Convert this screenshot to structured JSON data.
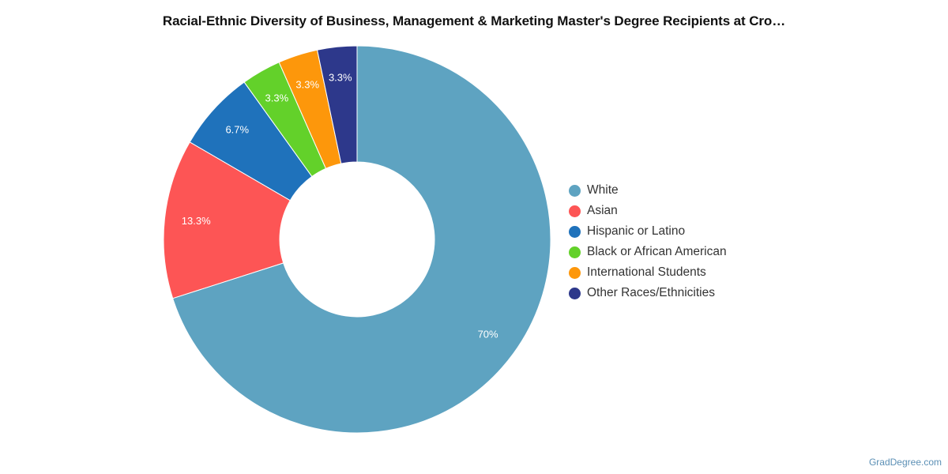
{
  "chart_data": {
    "type": "pie",
    "title": "Racial-Ethnic Diversity of Business, Management & Marketing Master's Degree Recipients at Cro…",
    "slices": [
      {
        "name": "White",
        "value": 70,
        "label": "70%",
        "color": "#5ea3c1"
      },
      {
        "name": "Asian",
        "value": 13.3,
        "label": "13.3%",
        "color": "#fd5555"
      },
      {
        "name": "Hispanic or Latino",
        "value": 6.7,
        "label": "6.7%",
        "color": "#1f72bb"
      },
      {
        "name": "Black or African American",
        "value": 3.3,
        "label": "3.3%",
        "color": "#63d12a"
      },
      {
        "name": "International Students",
        "value": 3.3,
        "label": "3.3%",
        "color": "#fd970b"
      },
      {
        "name": "Other Races/Ethnicities",
        "value": 3.3,
        "label": "3.3%",
        "color": "#2d388b"
      }
    ],
    "legend_position": "right"
  },
  "watermark": "GradDegree.com"
}
